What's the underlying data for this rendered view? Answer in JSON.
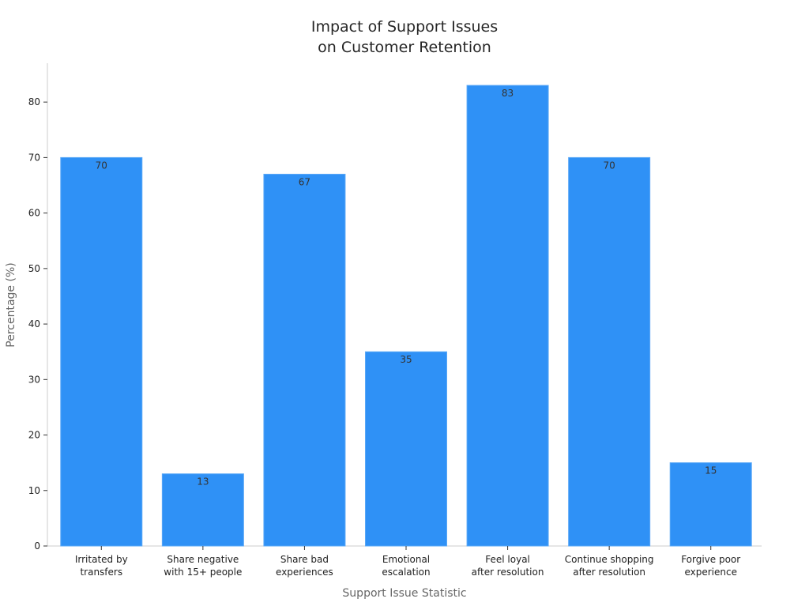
{
  "chart_data": {
    "type": "bar",
    "title_lines": [
      "Impact of Support Issues",
      "on Customer Retention"
    ],
    "xlabel": "Support Issue Statistic",
    "ylabel": "Percentage (%)",
    "categories": [
      [
        "Irritated by",
        "transfers"
      ],
      [
        "Share negative",
        "with 15+ people"
      ],
      [
        "Share bad",
        "experiences"
      ],
      [
        "Emotional",
        "escalation"
      ],
      [
        "Feel loyal",
        "after resolution"
      ],
      [
        "Continue shopping",
        "after resolution"
      ],
      [
        "Forgive poor",
        "experience"
      ]
    ],
    "values": [
      70,
      13,
      67,
      35,
      83,
      70,
      15
    ],
    "data_labels": [
      "70",
      "13",
      "67",
      "35",
      "83",
      "70",
      "15"
    ],
    "yticks": [
      0,
      10,
      20,
      30,
      40,
      50,
      60,
      70,
      80
    ],
    "ylim": [
      0,
      87
    ],
    "grid": false,
    "legend": "none",
    "colors": {
      "bar": "#2f91f6",
      "bar_edge": "#5aa8f7",
      "axis": "#cccccc",
      "tick_text": "#222222",
      "label_text": "#666666",
      "title_text": "#262626",
      "data_label_text": "#333333"
    }
  }
}
